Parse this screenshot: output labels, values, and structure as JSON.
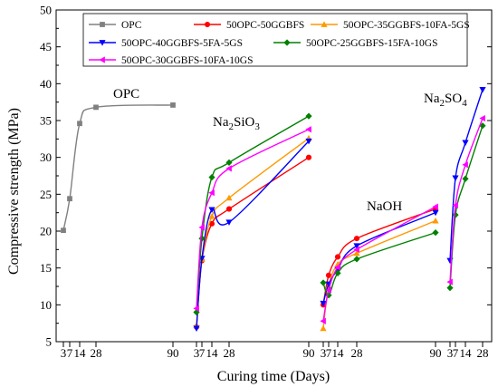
{
  "chart_data": {
    "type": "line",
    "xlabel": "Curing time (Days)",
    "ylabel": "Compressive strength (MPa)",
    "ylim": [
      5,
      50
    ],
    "yticks": [
      5,
      10,
      15,
      20,
      25,
      30,
      35,
      40,
      45,
      50
    ],
    "x_tick_labels": [
      "3",
      "7",
      "14",
      "28",
      "90"
    ],
    "legend_position": "top",
    "groups": [
      {
        "id": "opc",
        "label": "OPC",
        "label_sub": "",
        "series": [
          {
            "key": "opc",
            "x": [
              3,
              7,
              14,
              28,
              90
            ],
            "y": [
              20.1,
              24.4,
              34.6,
              36.8,
              37.1
            ]
          }
        ]
      },
      {
        "id": "na2sio3",
        "label": "Na",
        "label_sub": "2",
        "label_tail": "SiO",
        "label_sub2": "3",
        "series": [
          {
            "key": "ggbfs",
            "x": [
              3,
              7,
              14,
              28,
              90
            ],
            "y": [
              7.0,
              16.0,
              21.0,
              23.0,
              30.0
            ]
          },
          {
            "key": "fa5",
            "x": [
              3,
              7,
              14,
              28,
              90
            ],
            "y": [
              7.2,
              16.2,
              22.0,
              24.5,
              32.6
            ]
          },
          {
            "key": "fa5gs",
            "x": [
              3,
              7,
              14,
              28,
              90
            ],
            "y": [
              6.8,
              16.3,
              22.9,
              21.2,
              32.2
            ]
          },
          {
            "key": "fa15",
            "x": [
              3,
              7,
              14,
              28,
              90
            ],
            "y": [
              9.0,
              19.0,
              27.3,
              29.3,
              35.6
            ]
          },
          {
            "key": "fa10",
            "x": [
              3,
              7,
              14,
              28,
              90
            ],
            "y": [
              9.5,
              20.5,
              25.2,
              28.5,
              33.8
            ]
          }
        ]
      },
      {
        "id": "naoh",
        "label": "NaOH",
        "label_sub": "",
        "series": [
          {
            "key": "ggbfs",
            "x": [
              3,
              7,
              14,
              28,
              90
            ],
            "y": [
              10.0,
              14.0,
              16.5,
              19.0,
              23.0
            ]
          },
          {
            "key": "fa5",
            "x": [
              3,
              7,
              14,
              28,
              90
            ],
            "y": [
              6.8,
              12.5,
              15.5,
              17.0,
              21.4
            ]
          },
          {
            "key": "fa5gs",
            "x": [
              3,
              7,
              14,
              28,
              90
            ],
            "y": [
              10.2,
              12.8,
              14.8,
              18.0,
              22.5
            ]
          },
          {
            "key": "fa15",
            "x": [
              3,
              7,
              14,
              28,
              90
            ],
            "y": [
              13.0,
              11.3,
              14.3,
              16.2,
              19.8
            ]
          },
          {
            "key": "fa10",
            "x": [
              3,
              7,
              14,
              28,
              90
            ],
            "y": [
              7.8,
              12.0,
              15.1,
              17.5,
              23.3
            ]
          }
        ]
      },
      {
        "id": "na2so4",
        "label": "Na",
        "label_sub": "2",
        "label_tail": "SO",
        "label_sub2": "4",
        "series": [
          {
            "key": "fa5gs",
            "x": [
              3,
              7,
              14,
              28
            ],
            "y": [
              16.0,
              27.2,
              32.0,
              39.2
            ]
          },
          {
            "key": "fa15",
            "x": [
              3,
              7,
              14,
              28
            ],
            "y": [
              12.3,
              22.2,
              27.1,
              34.3
            ]
          },
          {
            "key": "fa10",
            "x": [
              3,
              7,
              14,
              28
            ],
            "y": [
              13.1,
              23.5,
              29.0,
              35.3
            ]
          }
        ]
      }
    ],
    "series_styles": [
      {
        "key": "opc",
        "name": "OPC",
        "color": "#808080",
        "marker": "square"
      },
      {
        "key": "ggbfs",
        "name": "50OPC-50GGBFS",
        "color": "#ff0000",
        "marker": "circle"
      },
      {
        "key": "fa5",
        "name": "50OPC-35GGBFS-10FA-5GS",
        "color": "#ff9900",
        "marker": "triangle-up"
      },
      {
        "key": "fa5gs",
        "name": "50OPC-40GGBFS-5FA-5GS",
        "color": "#0000ff",
        "marker": "triangle-down"
      },
      {
        "key": "fa15",
        "name": "50OPC-25GGBFS-15FA-10GS",
        "color": "#008000",
        "marker": "diamond"
      },
      {
        "key": "fa10",
        "name": "50OPC-30GGBFS-10FA-10GS",
        "color": "#ff00ff",
        "marker": "triangle-left"
      }
    ]
  }
}
